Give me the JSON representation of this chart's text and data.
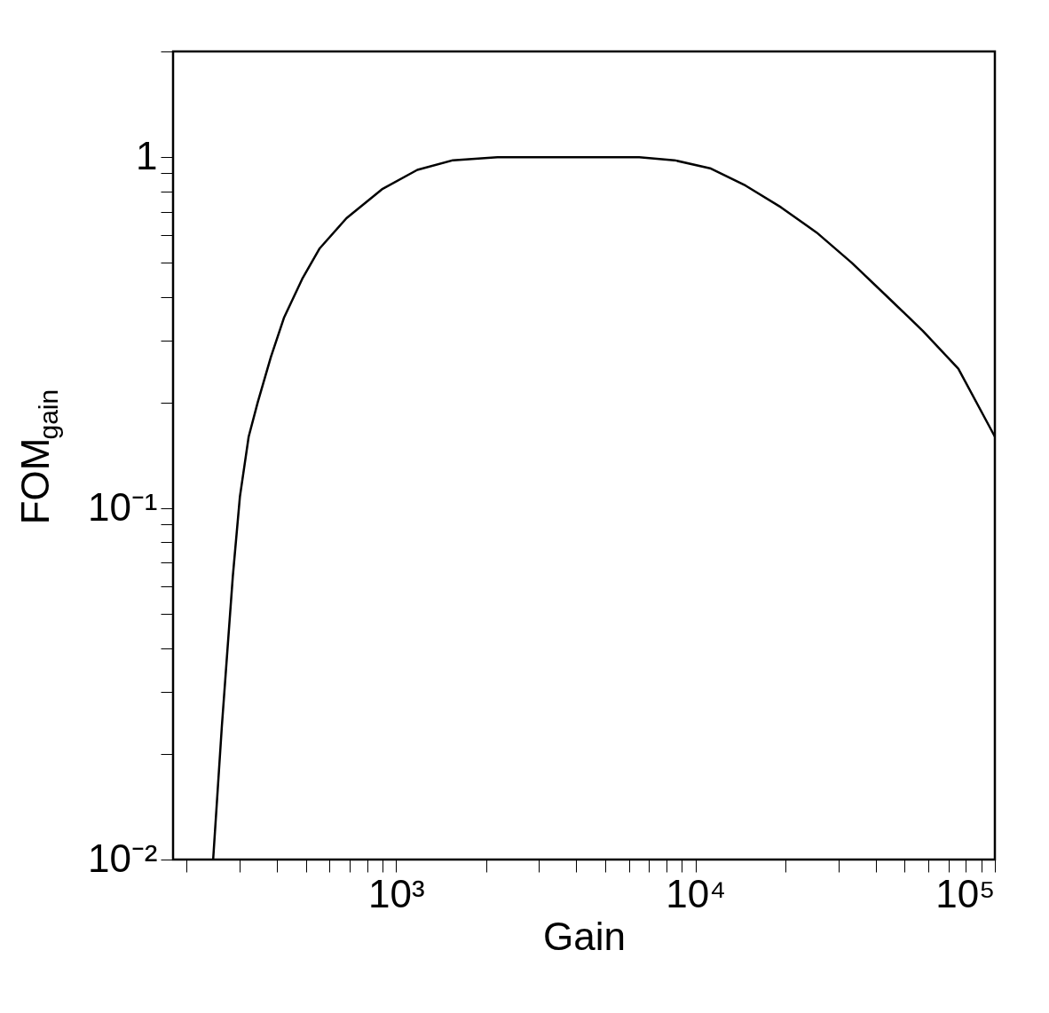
{
  "chart_data": {
    "type": "line",
    "xlabel": "Gain",
    "ylabel": "FOM$_{gain}$",
    "log": "xy",
    "grid": false,
    "marker": "none",
    "line_style": "solid",
    "xlim": [
      180,
      100000
    ],
    "ylim": [
      0.01,
      2
    ],
    "xticks": [
      {
        "value": 200,
        "label": null
      },
      {
        "value": 300,
        "label": null
      },
      {
        "value": 400,
        "label": null
      },
      {
        "value": 500,
        "label": null
      },
      {
        "value": 600,
        "label": null
      },
      {
        "value": 700,
        "label": null
      },
      {
        "value": 800,
        "label": null
      },
      {
        "value": 900,
        "label": null
      },
      {
        "value": 1000,
        "label": "10³"
      },
      {
        "value": 2000,
        "label": null
      },
      {
        "value": 3000,
        "label": null
      },
      {
        "value": 4000,
        "label": null
      },
      {
        "value": 5000,
        "label": null
      },
      {
        "value": 6000,
        "label": null
      },
      {
        "value": 7000,
        "label": null
      },
      {
        "value": 8000,
        "label": null
      },
      {
        "value": 9000,
        "label": null
      },
      {
        "value": 10000,
        "label": "10⁴"
      },
      {
        "value": 20000,
        "label": null
      },
      {
        "value": 30000,
        "label": null
      },
      {
        "value": 40000,
        "label": null
      },
      {
        "value": 50000,
        "label": null
      },
      {
        "value": 60000,
        "label": null
      },
      {
        "value": 70000,
        "label": null
      },
      {
        "value": 80000,
        "label": null
      },
      {
        "value": 90000,
        "label": null
      },
      {
        "value": 100000,
        "label": "10⁵"
      }
    ],
    "yticks": [
      {
        "value": 0.01,
        "label": "10⁻²"
      },
      {
        "value": 0.02,
        "label": null
      },
      {
        "value": 0.03,
        "label": null
      },
      {
        "value": 0.04,
        "label": null
      },
      {
        "value": 0.05,
        "label": null
      },
      {
        "value": 0.06,
        "label": null
      },
      {
        "value": 0.07,
        "label": null
      },
      {
        "value": 0.08,
        "label": null
      },
      {
        "value": 0.09,
        "label": null
      },
      {
        "value": 0.1,
        "label": "10⁻¹"
      },
      {
        "value": 0.2,
        "label": null
      },
      {
        "value": 0.3,
        "label": null
      },
      {
        "value": 0.4,
        "label": null
      },
      {
        "value": 0.5,
        "label": null
      },
      {
        "value": 0.6,
        "label": null
      },
      {
        "value": 0.7,
        "label": null
      },
      {
        "value": 0.8,
        "label": null
      },
      {
        "value": 0.9,
        "label": null
      },
      1,
      {
        "value": 2,
        "label": null
      }
    ],
    "series": [
      {
        "color": "#000000",
        "x": [
          245,
          262,
          285,
          301,
          322,
          345,
          382,
          423,
          486,
          556,
          683,
          897,
          1178,
          1548,
          2180,
          6490,
          8510,
          11190,
          14700,
          19300,
          25400,
          33300,
          43800,
          57500,
          75500,
          100000
        ],
        "values": [
          0.01,
          0.024,
          0.064,
          0.108,
          0.16,
          0.2,
          0.27,
          0.35,
          0.45,
          0.55,
          0.67,
          0.81,
          0.92,
          0.98,
          1,
          1,
          0.98,
          0.93,
          0.83,
          0.72,
          0.61,
          0.5,
          0.4,
          0.32,
          0.25,
          0.16
        ]
      }
    ]
  }
}
